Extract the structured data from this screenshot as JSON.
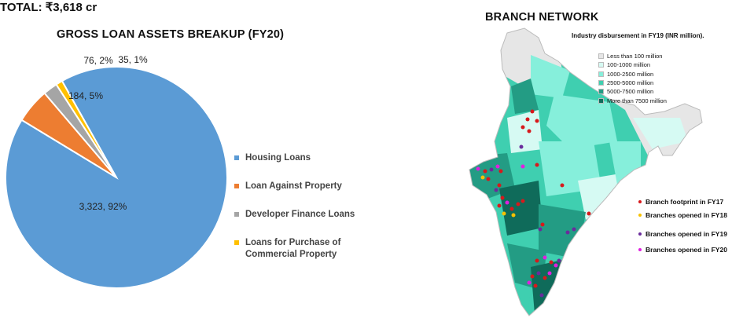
{
  "chart_data": {
    "type": "pie",
    "title": "GROSS LOAN ASSETS BREAKUP (FY20)",
    "total_label": "TOTAL: ₹3,618 cr",
    "slices": [
      {
        "name": "Housing Loans",
        "value": 3323,
        "label": "3,323, 92%",
        "color": "#5B9BD5"
      },
      {
        "name": "Loan Against Property",
        "value": 184,
        "label": "184, 5%",
        "color": "#ED7D31"
      },
      {
        "name": "Developer Finance Loans",
        "value": 76,
        "label": "76, 2%",
        "color": "#A5A5A5"
      },
      {
        "name": "Loans for Purchase of Commercial Property",
        "value": 35,
        "label": "35, 1%",
        "color": "#FFC000"
      }
    ],
    "legend_placement": "right"
  },
  "map": {
    "title": "BRANCH NETWORK",
    "legend_title": "Industry disbursement in FY19 (INR million).",
    "shade_legend": [
      {
        "label": "Less than 100 million",
        "color": "#e6e6e6"
      },
      {
        "label": "100-1000 million",
        "color": "#d6faf3"
      },
      {
        "label": "1000-2500 million",
        "color": "#86efdb"
      },
      {
        "label": "2500-5000 million",
        "color": "#3fcfb0"
      },
      {
        "label": "5000-7500 million",
        "color": "#239c84"
      },
      {
        "label": "More than 7500 million",
        "color": "#0f6b5a"
      }
    ],
    "branch_legend": [
      {
        "label": "Branch footprint in FY17",
        "color": "#d7191c"
      },
      {
        "label": "Branches opened in FY18",
        "color": "#f7c100"
      },
      {
        "label": "Branches opened in FY19",
        "color": "#6a2c9c"
      },
      {
        "label": "Branches opened in FY20",
        "color": "#e020e0"
      }
    ]
  }
}
